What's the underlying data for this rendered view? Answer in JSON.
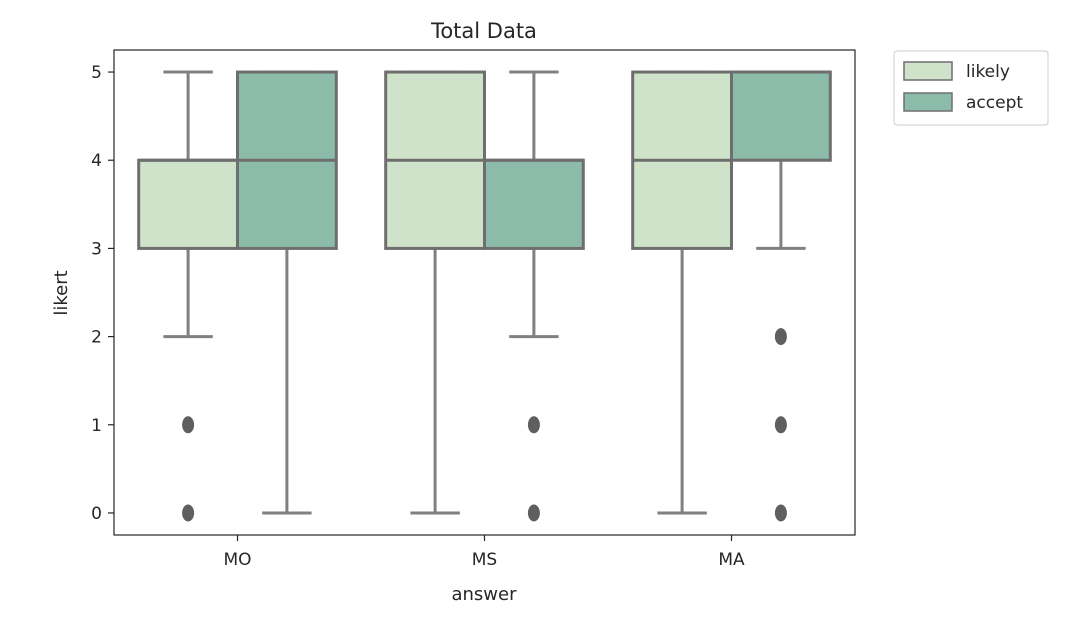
{
  "chart_data": {
    "type": "boxplot",
    "title": "Total Data",
    "xlabel": "answer",
    "ylabel": "likert",
    "categories": [
      "MO",
      "MS",
      "MA"
    ],
    "ylim": [
      -0.25,
      5.25
    ],
    "yticks": [
      0,
      1,
      2,
      3,
      4,
      5
    ],
    "legend_position": "outside-top-right",
    "colors": {
      "likely": "#cfe3ca",
      "accept": "#8dbba9",
      "edge": "#6e6e6e",
      "whisker": "#808080"
    },
    "series": [
      {
        "name": "likely",
        "boxes": [
          {
            "category": "MO",
            "whisker_low": 2,
            "q1": 3,
            "median": 4,
            "q3": 4,
            "whisker_high": 5,
            "outliers": [
              1,
              0
            ]
          },
          {
            "category": "MS",
            "whisker_low": 0,
            "q1": 3,
            "median": 4,
            "q3": 5,
            "whisker_high": 5,
            "outliers": []
          },
          {
            "category": "MA",
            "whisker_low": 0,
            "q1": 3,
            "median": 4,
            "q3": 5,
            "whisker_high": 5,
            "outliers": []
          }
        ]
      },
      {
        "name": "accept",
        "boxes": [
          {
            "category": "MO",
            "whisker_low": 0,
            "q1": 3,
            "median": 4,
            "q3": 5,
            "whisker_high": 5,
            "outliers": []
          },
          {
            "category": "MS",
            "whisker_low": 2,
            "q1": 3,
            "median": 4,
            "q3": 4,
            "whisker_high": 5,
            "outliers": [
              1,
              0
            ]
          },
          {
            "category": "MA",
            "whisker_low": 3,
            "q1": 4,
            "median": 5,
            "q3": 5,
            "whisker_high": 5,
            "outliers": [
              2,
              1,
              0
            ]
          }
        ]
      }
    ]
  }
}
